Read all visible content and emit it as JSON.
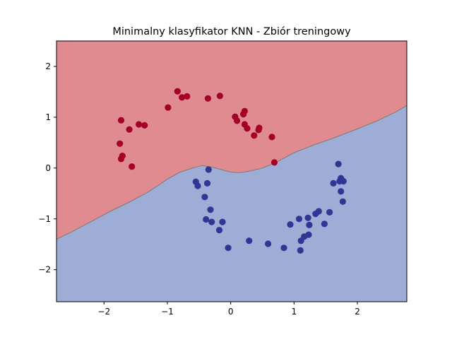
{
  "chart_data": {
    "type": "scatter",
    "title": "Minimalny klasyfikator KNN - Zbiór treningowy",
    "xlabel": "",
    "ylabel": "",
    "xlim": [
      -2.75,
      2.78
    ],
    "ylim": [
      -2.63,
      2.5
    ],
    "xticks": [
      -2,
      -1,
      0,
      1,
      2
    ],
    "xtick_labels": [
      "−2",
      "−1",
      "0",
      "1",
      "2"
    ],
    "yticks": [
      -2,
      -1,
      0,
      1,
      2
    ],
    "ytick_labels": [
      "−2",
      "−1",
      "0",
      "1",
      "2"
    ],
    "grid": false,
    "legend": "none",
    "decision_regions": {
      "boundary": [
        [
          -2.75,
          -1.4
        ],
        [
          -2.5,
          -1.25
        ],
        [
          -2.2,
          -1.05
        ],
        [
          -1.9,
          -0.85
        ],
        [
          -1.6,
          -0.67
        ],
        [
          -1.3,
          -0.47
        ],
        [
          -1.0,
          -0.22
        ],
        [
          -0.8,
          -0.08
        ],
        [
          -0.6,
          0.0
        ],
        [
          -0.45,
          0.05
        ],
        [
          -0.3,
          0.02
        ],
        [
          -0.15,
          -0.03
        ],
        [
          0.0,
          -0.08
        ],
        [
          0.15,
          -0.09
        ],
        [
          0.3,
          -0.06
        ],
        [
          0.5,
          0.0
        ],
        [
          0.7,
          0.1
        ],
        [
          1.0,
          0.3
        ],
        [
          1.3,
          0.45
        ],
        [
          1.6,
          0.58
        ],
        [
          2.0,
          0.77
        ],
        [
          2.3,
          0.92
        ],
        [
          2.6,
          1.1
        ],
        [
          2.78,
          1.23
        ]
      ],
      "upper_region_color": "#e08b8f",
      "lower_region_color": "#9dadd5",
      "boundary_color": "#7a7a7a"
    },
    "series": [
      {
        "color": "#a50026",
        "points": [
          [
            -1.73,
            0.94
          ],
          [
            -1.6,
            0.76
          ],
          [
            -1.45,
            0.86
          ],
          [
            -1.36,
            0.84
          ],
          [
            -1.75,
            0.48
          ],
          [
            -1.71,
            0.24
          ],
          [
            -1.73,
            0.18
          ],
          [
            -1.56,
            0.03
          ],
          [
            -0.99,
            1.19
          ],
          [
            -0.84,
            1.51
          ],
          [
            -0.77,
            1.39
          ],
          [
            -0.69,
            1.41
          ],
          [
            -0.36,
            1.37
          ],
          [
            -0.17,
            1.42
          ],
          [
            0.07,
            1.01
          ],
          [
            0.1,
            0.93
          ],
          [
            0.2,
            1.06
          ],
          [
            0.22,
            1.12
          ],
          [
            0.22,
            0.86
          ],
          [
            0.26,
            0.78
          ],
          [
            0.37,
            0.64
          ],
          [
            0.44,
            0.75
          ],
          [
            0.45,
            0.79
          ],
          [
            0.65,
            0.61
          ],
          [
            0.69,
            0.11
          ]
        ]
      },
      {
        "color": "#313695",
        "points": [
          [
            -0.35,
            -0.03
          ],
          [
            -0.37,
            -0.3
          ],
          [
            -0.55,
            -0.27
          ],
          [
            -0.52,
            -0.35
          ],
          [
            -0.41,
            -0.57
          ],
          [
            -0.32,
            -0.82
          ],
          [
            -0.39,
            -1.01
          ],
          [
            -0.3,
            -1.06
          ],
          [
            -0.18,
            -1.22
          ],
          [
            -0.13,
            -1.06
          ],
          [
            -0.04,
            -1.57
          ],
          [
            0.29,
            -1.43
          ],
          [
            0.59,
            -1.49
          ],
          [
            0.84,
            -1.57
          ],
          [
            0.94,
            -1.11
          ],
          [
            1.08,
            -1.0
          ],
          [
            1.1,
            -1.62
          ],
          [
            1.11,
            -1.43
          ],
          [
            1.16,
            -1.35
          ],
          [
            1.22,
            -0.98
          ],
          [
            1.23,
            -1.31
          ],
          [
            1.24,
            -1.12
          ],
          [
            1.34,
            -0.9
          ],
          [
            1.39,
            -0.85
          ],
          [
            1.48,
            -1.1
          ],
          [
            1.56,
            -0.87
          ],
          [
            1.62,
            -0.3
          ],
          [
            1.7,
            0.08
          ],
          [
            1.72,
            -0.26
          ],
          [
            1.74,
            -0.2
          ],
          [
            1.74,
            -0.46
          ],
          [
            1.77,
            -0.66
          ],
          [
            1.78,
            -0.26
          ]
        ]
      }
    ]
  }
}
